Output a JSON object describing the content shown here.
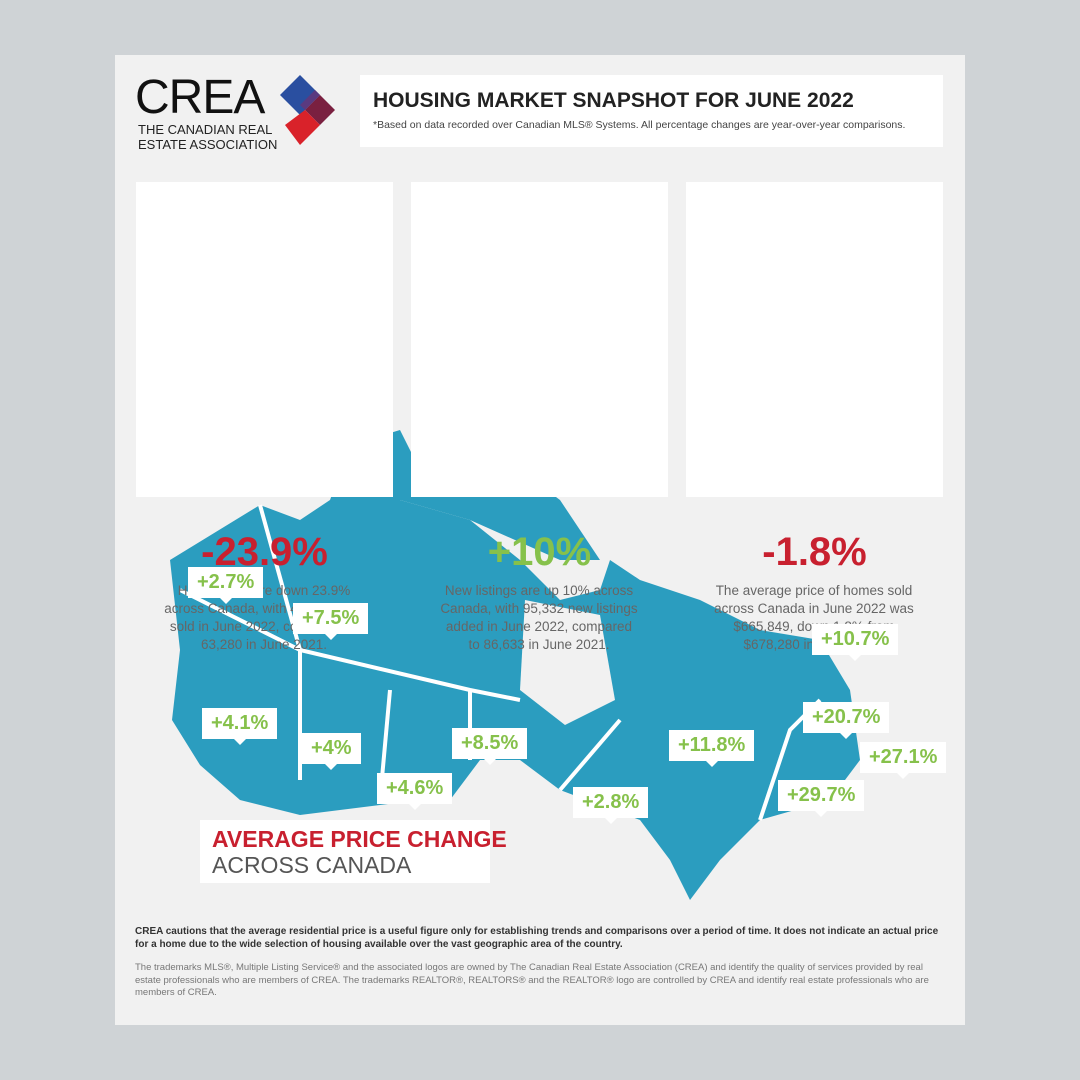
{
  "logo": {
    "name": "CREA",
    "tagline_lines": [
      "THE CANADIAN REAL",
      "ESTATE ASSOCIATION"
    ]
  },
  "header": {
    "title": "HOUSING MARKET SNAPSHOT FOR JUNE 2022",
    "subtitle": "*Based on data recorded over Canadian MLS® Systems. All percentage changes are year-over-year comparisons."
  },
  "cards": [
    {
      "value": "-23.9%",
      "color": "#c8202f",
      "text": "Home sales are down 23.9% across Canada, with 48,176 units sold in June 2022, compared to 63,280 in June 2021."
    },
    {
      "value": "+10%",
      "color": "#86c14b",
      "text": "New listings are up 10% across Canada, with 95,332 new listings added in June 2022, compared to 86,633 in June 2021."
    },
    {
      "value": "-1.8%",
      "color": "#c8202f",
      "text": "The average price of homes sold across Canada in June 2022 was $665,849, down 1.8% from $678,280 in June 2021."
    }
  ],
  "map": {
    "labels": [
      "+2.7%",
      "+7.5%",
      "+4.1%",
      "+4%",
      "+4.6%",
      "+8.5%",
      "+11.8%",
      "+2.8%",
      "+10.7%",
      "+20.7%",
      "+27.1%",
      "+29.7%"
    ],
    "title_lines": [
      "AVERAGE PRICE CHANGE",
      "ACROSS CANADA"
    ]
  },
  "footer": {
    "disclaimer": "CREA cautions that the average residential price is a useful figure only for establishing trends and comparisons over a period of time. It does not indicate an actual price for a home due to the wide selection of housing available over the vast geographic area of the country.",
    "trademark": "The trademarks MLS®, Multiple Listing Service® and the associated logos are owned by The Canadian Real Estate Association (CREA) and identify the quality of services provided by real estate professionals who are members of CREA. The trademarks REALTOR®, REALTORS® and the REALTOR® logo are controlled by CREA and identify real estate professionals who are members of CREA."
  }
}
